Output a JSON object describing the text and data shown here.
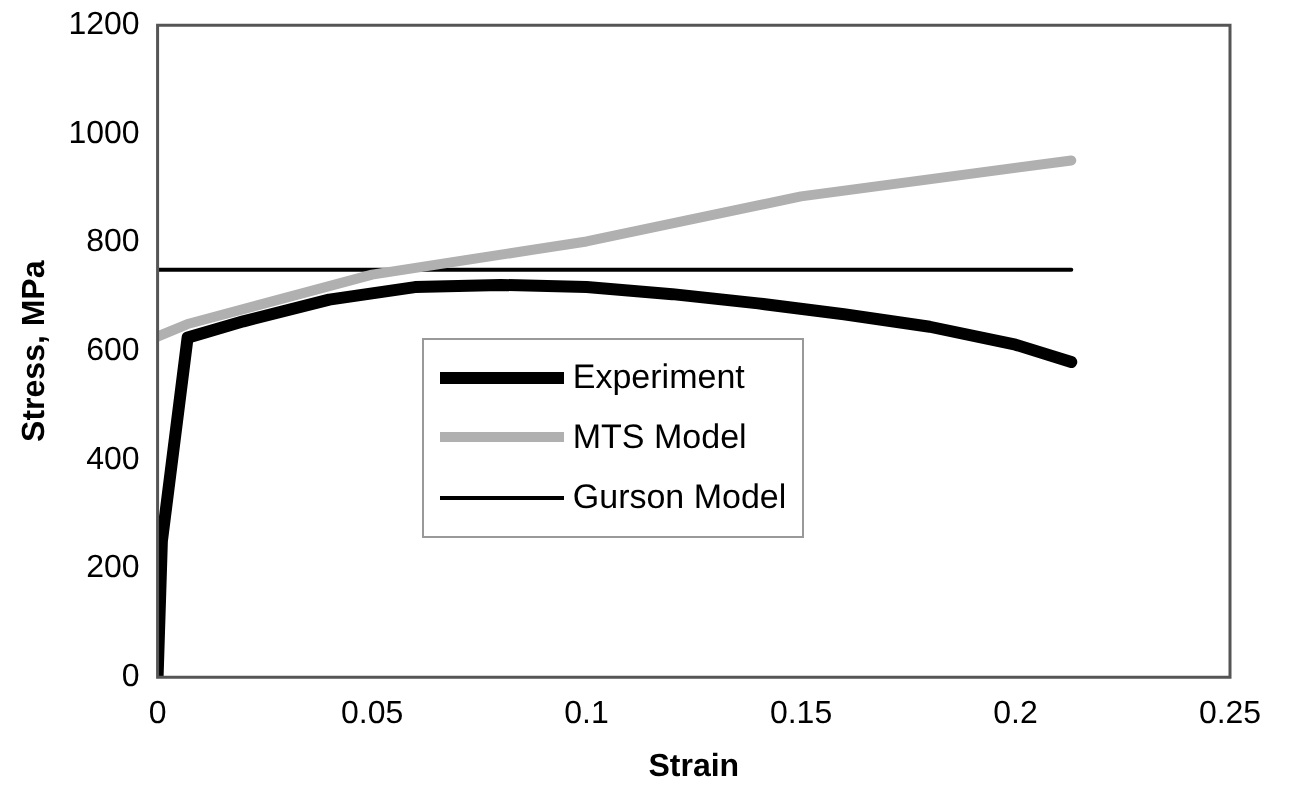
{
  "chart_data": {
    "type": "line",
    "xlabel": "Strain",
    "ylabel": "Stress, MPa",
    "xlim": [
      0,
      0.25
    ],
    "xticks": [
      0,
      0.05,
      0.1,
      0.15,
      0.2,
      0.25
    ],
    "ylim": [
      0,
      1200
    ],
    "yticks": [
      0,
      200,
      400,
      600,
      800,
      1000,
      1200
    ],
    "grid": false,
    "legend": "bottom",
    "marker": "none",
    "series": [
      {
        "name": "Experiment",
        "color": "#000000",
        "x": [
          0,
          0.001,
          0.007,
          0.02,
          0.04,
          0.06,
          0.08,
          0.1,
          0.12,
          0.14,
          0.16,
          0.18,
          0.2,
          0.213
        ],
        "values": [
          0,
          250,
          625,
          655,
          695,
          718,
          722,
          718,
          705,
          688,
          668,
          645,
          612,
          580
        ]
      },
      {
        "name": "MTS Model",
        "color": "#b0b0b0",
        "x": [
          0,
          0.007,
          0.05,
          0.1,
          0.15,
          0.213
        ],
        "values": [
          627,
          650,
          741,
          802,
          885,
          951
        ]
      },
      {
        "name": "Gurson Model",
        "color": "#000000",
        "x": [
          0,
          0.213
        ],
        "values": [
          750,
          750
        ]
      }
    ]
  }
}
